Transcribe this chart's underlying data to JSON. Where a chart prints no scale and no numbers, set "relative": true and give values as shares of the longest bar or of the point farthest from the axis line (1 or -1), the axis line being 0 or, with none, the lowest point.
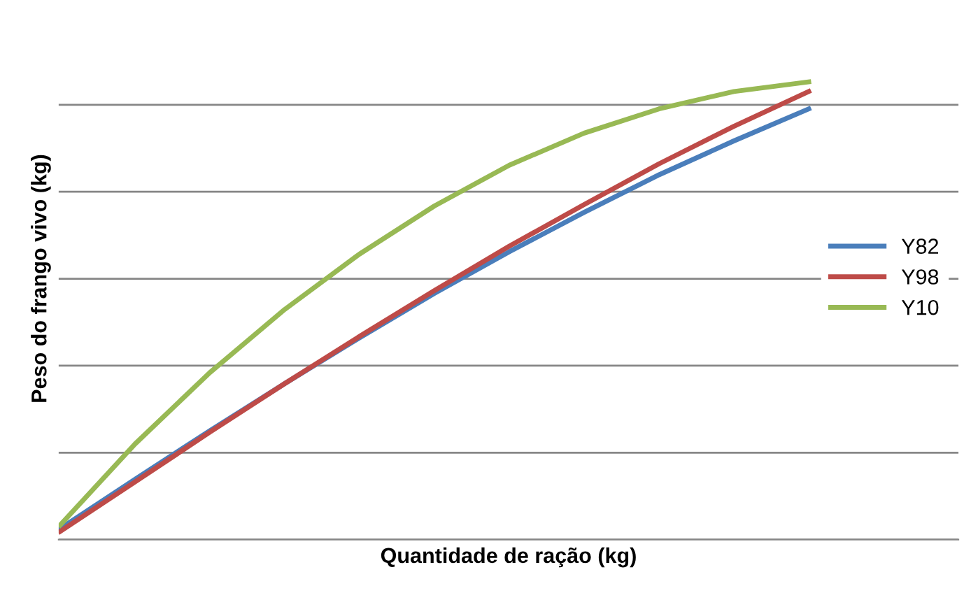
{
  "chart_data": {
    "type": "line",
    "relative": true,
    "xlabel": "Quantidade de ração (kg)",
    "ylabel": "Peso do frango vivo (kg)",
    "categories": [
      null,
      null,
      null,
      null,
      null,
      null,
      null,
      null,
      null,
      null,
      null
    ],
    "series": [
      {
        "name": "Y82",
        "color": "#4a7ebb",
        "values": [
          0.024,
          0.132,
          0.238,
          0.341,
          0.441,
          0.538,
          0.629,
          0.715,
          0.797,
          0.871,
          0.941
        ]
      },
      {
        "name": "Y98",
        "color": "#be4b48",
        "values": [
          0.018,
          0.126,
          0.235,
          0.341,
          0.444,
          0.544,
          0.641,
          0.732,
          0.821,
          0.903,
          0.979
        ]
      },
      {
        "name": "Y10",
        "color": "#98b954",
        "values": [
          0.032,
          0.209,
          0.365,
          0.503,
          0.624,
          0.729,
          0.818,
          0.888,
          0.941,
          0.979,
          1.0
        ]
      }
    ],
    "grid": "y",
    "legend": "right",
    "marker": "none",
    "line_style": "solid"
  }
}
